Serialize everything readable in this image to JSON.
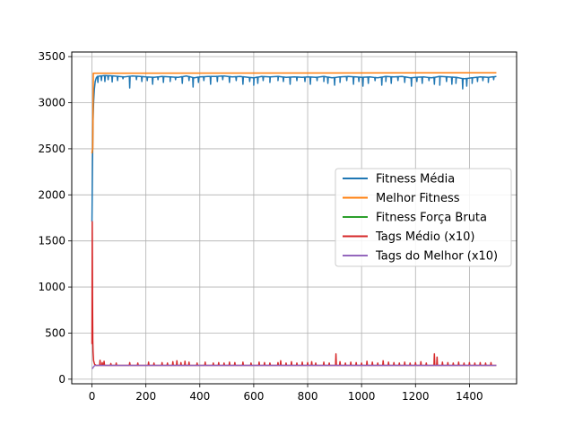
{
  "chart_data": {
    "type": "line",
    "title": "",
    "xlabel": "",
    "ylabel": "",
    "xlim": [
      -75,
      1575
    ],
    "ylim": [
      -50,
      3550
    ],
    "x_ticks": [
      0,
      200,
      400,
      600,
      800,
      1000,
      1200,
      1400
    ],
    "y_ticks": [
      0,
      500,
      1000,
      1500,
      2000,
      2500,
      3000,
      3500
    ],
    "grid": true,
    "legend_position": "center-right",
    "series": [
      {
        "name": "Fitness Média",
        "color": "#1f77b4",
        "points": [
          [
            0,
            1710
          ],
          [
            2,
            2350
          ],
          [
            4,
            2800
          ],
          [
            6,
            3000
          ],
          [
            9,
            3150
          ],
          [
            12,
            3230
          ],
          [
            16,
            3270
          ],
          [
            20,
            3285
          ],
          [
            30,
            3290
          ],
          [
            50,
            3295
          ],
          [
            80,
            3290
          ],
          [
            100,
            3285
          ],
          [
            120,
            3280
          ],
          [
            150,
            3290
          ],
          [
            180,
            3285
          ],
          [
            200,
            3280
          ],
          [
            230,
            3275
          ],
          [
            260,
            3285
          ],
          [
            290,
            3280
          ],
          [
            320,
            3275
          ],
          [
            350,
            3290
          ],
          [
            380,
            3270
          ],
          [
            400,
            3280
          ],
          [
            430,
            3285
          ],
          [
            460,
            3285
          ],
          [
            490,
            3290
          ],
          [
            520,
            3280
          ],
          [
            550,
            3285
          ],
          [
            580,
            3275
          ],
          [
            600,
            3270
          ],
          [
            630,
            3285
          ],
          [
            660,
            3280
          ],
          [
            690,
            3285
          ],
          [
            720,
            3275
          ],
          [
            750,
            3280
          ],
          [
            780,
            3275
          ],
          [
            800,
            3280
          ],
          [
            830,
            3275
          ],
          [
            860,
            3285
          ],
          [
            890,
            3270
          ],
          [
            920,
            3280
          ],
          [
            950,
            3285
          ],
          [
            980,
            3280
          ],
          [
            1000,
            3275
          ],
          [
            1030,
            3280
          ],
          [
            1060,
            3270
          ],
          [
            1090,
            3285
          ],
          [
            1120,
            3280
          ],
          [
            1150,
            3285
          ],
          [
            1180,
            3270
          ],
          [
            1200,
            3275
          ],
          [
            1230,
            3280
          ],
          [
            1260,
            3270
          ],
          [
            1290,
            3285
          ],
          [
            1320,
            3280
          ],
          [
            1350,
            3275
          ],
          [
            1380,
            3260
          ],
          [
            1410,
            3270
          ],
          [
            1440,
            3280
          ],
          [
            1470,
            3275
          ],
          [
            1500,
            3285
          ]
        ],
        "dips": [
          [
            22,
            3220
          ],
          [
            35,
            3240
          ],
          [
            48,
            3230
          ],
          [
            60,
            3250
          ],
          [
            75,
            3225
          ],
          [
            95,
            3240
          ],
          [
            115,
            3260
          ],
          [
            140,
            3160
          ],
          [
            165,
            3250
          ],
          [
            185,
            3230
          ],
          [
            205,
            3240
          ],
          [
            225,
            3200
          ],
          [
            245,
            3250
          ],
          [
            265,
            3220
          ],
          [
            290,
            3230
          ],
          [
            310,
            3250
          ],
          [
            335,
            3210
          ],
          [
            360,
            3240
          ],
          [
            375,
            3170
          ],
          [
            395,
            3220
          ],
          [
            415,
            3240
          ],
          [
            440,
            3200
          ],
          [
            465,
            3230
          ],
          [
            485,
            3250
          ],
          [
            510,
            3220
          ],
          [
            535,
            3240
          ],
          [
            560,
            3200
          ],
          [
            585,
            3230
          ],
          [
            600,
            3190
          ],
          [
            615,
            3210
          ],
          [
            635,
            3240
          ],
          [
            660,
            3220
          ],
          [
            690,
            3240
          ],
          [
            710,
            3230
          ],
          [
            735,
            3200
          ],
          [
            760,
            3240
          ],
          [
            790,
            3230
          ],
          [
            810,
            3200
          ],
          [
            835,
            3240
          ],
          [
            860,
            3230
          ],
          [
            875,
            3210
          ],
          [
            900,
            3190
          ],
          [
            920,
            3220
          ],
          [
            945,
            3240
          ],
          [
            970,
            3200
          ],
          [
            990,
            3230
          ],
          [
            1005,
            3180
          ],
          [
            1025,
            3210
          ],
          [
            1050,
            3240
          ],
          [
            1075,
            3190
          ],
          [
            1090,
            3230
          ],
          [
            1110,
            3210
          ],
          [
            1135,
            3240
          ],
          [
            1160,
            3220
          ],
          [
            1185,
            3180
          ],
          [
            1205,
            3230
          ],
          [
            1225,
            3210
          ],
          [
            1250,
            3240
          ],
          [
            1270,
            3200
          ],
          [
            1290,
            3190
          ],
          [
            1315,
            3230
          ],
          [
            1335,
            3200
          ],
          [
            1350,
            3210
          ],
          [
            1375,
            3150
          ],
          [
            1390,
            3180
          ],
          [
            1410,
            3210
          ],
          [
            1430,
            3230
          ],
          [
            1450,
            3240
          ],
          [
            1470,
            3220
          ],
          [
            1490,
            3250
          ]
        ]
      },
      {
        "name": "Melhor Fitness",
        "color": "#ff7f0e",
        "points": [
          [
            0,
            2450
          ],
          [
            1,
            2480
          ],
          [
            3,
            2500
          ],
          [
            5,
            3320
          ],
          [
            1500,
            3325
          ]
        ]
      },
      {
        "name": "Fitness Força Bruta",
        "color": "#2ca02c",
        "points": []
      },
      {
        "name": " Tags Médio (x10)",
        "color": "#d62728",
        "points": [
          [
            0,
            380
          ],
          [
            1,
            1710
          ],
          [
            2,
            900
          ],
          [
            3,
            420
          ],
          [
            4,
            300
          ],
          [
            6,
            200
          ],
          [
            10,
            160
          ],
          [
            15,
            150
          ],
          [
            1500,
            150
          ]
        ],
        "spikes": [
          [
            30,
            205
          ],
          [
            38,
            180
          ],
          [
            45,
            195
          ],
          [
            70,
            170
          ],
          [
            90,
            175
          ],
          [
            140,
            180
          ],
          [
            170,
            175
          ],
          [
            210,
            185
          ],
          [
            230,
            175
          ],
          [
            260,
            180
          ],
          [
            280,
            175
          ],
          [
            300,
            190
          ],
          [
            315,
            200
          ],
          [
            330,
            180
          ],
          [
            345,
            195
          ],
          [
            360,
            185
          ],
          [
            390,
            175
          ],
          [
            420,
            185
          ],
          [
            450,
            175
          ],
          [
            470,
            180
          ],
          [
            490,
            175
          ],
          [
            510,
            185
          ],
          [
            530,
            180
          ],
          [
            560,
            185
          ],
          [
            590,
            175
          ],
          [
            620,
            185
          ],
          [
            640,
            180
          ],
          [
            660,
            175
          ],
          [
            690,
            180
          ],
          [
            700,
            200
          ],
          [
            720,
            175
          ],
          [
            740,
            190
          ],
          [
            760,
            175
          ],
          [
            780,
            185
          ],
          [
            800,
            180
          ],
          [
            815,
            190
          ],
          [
            830,
            175
          ],
          [
            860,
            185
          ],
          [
            880,
            175
          ],
          [
            905,
            275
          ],
          [
            920,
            190
          ],
          [
            940,
            175
          ],
          [
            960,
            185
          ],
          [
            980,
            180
          ],
          [
            1000,
            175
          ],
          [
            1020,
            195
          ],
          [
            1040,
            185
          ],
          [
            1060,
            175
          ],
          [
            1080,
            200
          ],
          [
            1100,
            185
          ],
          [
            1120,
            180
          ],
          [
            1140,
            175
          ],
          [
            1160,
            185
          ],
          [
            1180,
            175
          ],
          [
            1200,
            180
          ],
          [
            1220,
            190
          ],
          [
            1240,
            175
          ],
          [
            1270,
            275
          ],
          [
            1280,
            240
          ],
          [
            1300,
            185
          ],
          [
            1320,
            180
          ],
          [
            1340,
            175
          ],
          [
            1360,
            185
          ],
          [
            1380,
            175
          ],
          [
            1400,
            180
          ],
          [
            1420,
            175
          ],
          [
            1440,
            180
          ],
          [
            1460,
            175
          ],
          [
            1480,
            180
          ]
        ]
      },
      {
        "name": "Tags do Melhor (x10)",
        "color": "#9467bd",
        "points": [
          [
            0,
            115
          ],
          [
            3,
            120
          ],
          [
            6,
            135
          ],
          [
            10,
            148
          ],
          [
            20,
            150
          ],
          [
            1500,
            150
          ]
        ]
      }
    ]
  }
}
